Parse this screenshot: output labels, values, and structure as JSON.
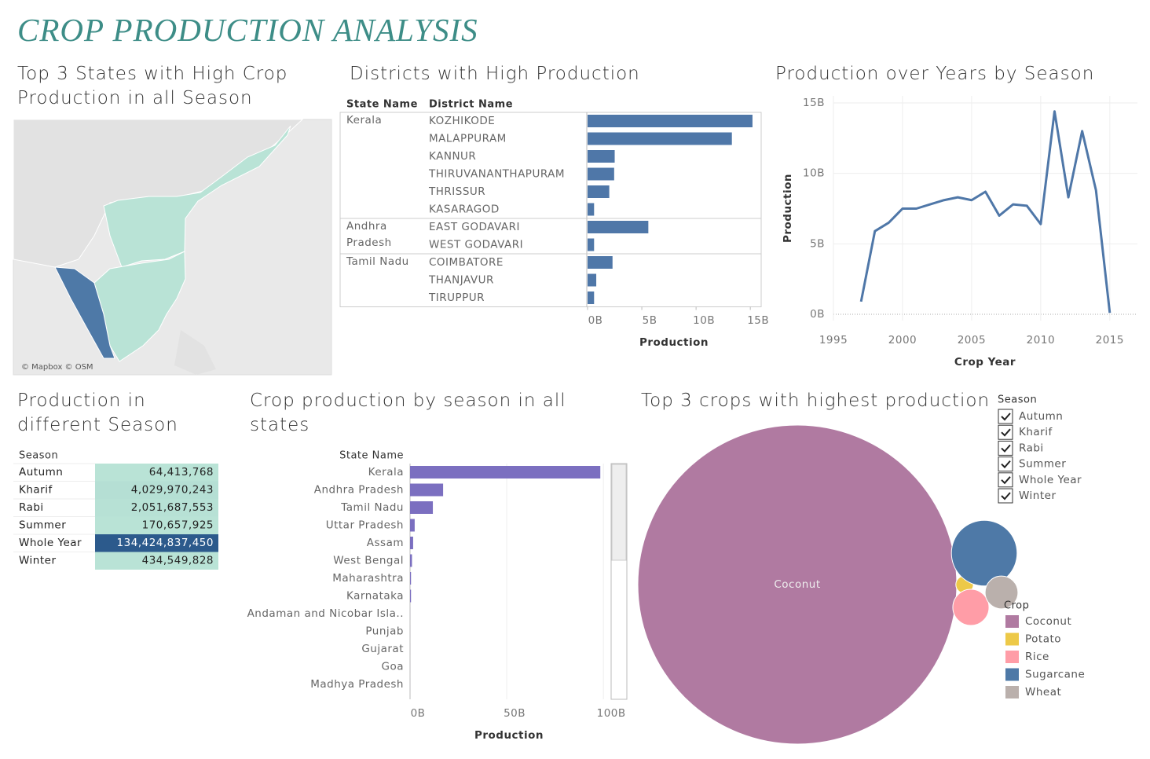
{
  "title": "CROP PRODUCTION ANALYSIS",
  "map": {
    "title": "Top 3 States with High Crop Production in all Season",
    "attribution": "© Mapbox © OSM"
  },
  "season_filter": {
    "title": "Season",
    "items": [
      "Autumn",
      "Kharif",
      "Rabi",
      "Summer",
      "Whole Year",
      "Winter"
    ]
  },
  "chart_data": [
    {
      "type": "grouped-bar",
      "title": "Districts with High Production",
      "group_header": "State Name",
      "category_header": "District Name",
      "color": "#4f77a8",
      "xlabel": "Production",
      "xlim": [
        0,
        16000000000
      ],
      "xticks": [
        {
          "value": 0,
          "label": "0B"
        },
        {
          "value": 5000000000,
          "label": "5B"
        },
        {
          "value": 10000000000,
          "label": "10B"
        },
        {
          "value": 15000000000,
          "label": "15B"
        }
      ],
      "groups": [
        {
          "name": "Kerala",
          "categories": [
            "KOZHIKODE",
            "MALAPPURAM",
            "KANNUR",
            "THIRUVANANTHAPURAM",
            "THRISSUR",
            "KASARAGOD"
          ],
          "values": [
            15200000000,
            13300000000,
            2500000000,
            2450000000,
            2000000000,
            600000000
          ]
        },
        {
          "name": "Andhra Pradesh",
          "categories": [
            "EAST GODAVARI",
            "WEST GODAVARI"
          ],
          "values": [
            5600000000,
            600000000
          ]
        },
        {
          "name": "Tamil Nadu",
          "categories": [
            "COIMBATORE",
            "THANJAVUR",
            "TIRUPPUR"
          ],
          "values": [
            2300000000,
            800000000,
            600000000
          ]
        }
      ]
    },
    {
      "type": "line",
      "title": "Production over Years by Season",
      "xlabel": "Crop Year",
      "ylabel": "Production",
      "color": "#4f77a8",
      "x": [
        1997,
        1998,
        1999,
        2000,
        2001,
        2002,
        2003,
        2004,
        2005,
        2006,
        2007,
        2008,
        2009,
        2010,
        2011,
        2012,
        2013,
        2014,
        2015
      ],
      "values": [
        900000000,
        5900000000,
        6500000000,
        7500000000,
        7500000000,
        7800000000,
        8100000000,
        8300000000,
        8100000000,
        8700000000,
        7000000000,
        7800000000,
        7700000000,
        6400000000,
        14400000000,
        8300000000,
        13000000000,
        8800000000,
        100000000
      ],
      "xlim": [
        1995,
        2017
      ],
      "xticks": [
        1995,
        2000,
        2005,
        2010,
        2015
      ],
      "ylim": [
        0,
        15000000000
      ],
      "yticks": [
        {
          "value": 0,
          "label": "0B"
        },
        {
          "value": 5000000000,
          "label": "5B"
        },
        {
          "value": 10000000000,
          "label": "10B"
        },
        {
          "value": 15000000000,
          "label": "15B"
        }
      ],
      "grid": true
    },
    {
      "type": "highlight-table",
      "title": "Production in different Season",
      "header": "Season",
      "categories": [
        "Autumn",
        "Kharif",
        "Rabi",
        "Summer",
        "Whole Year",
        "Winter"
      ],
      "values": [
        64413768,
        4029970243,
        2051687553,
        170657925,
        134424837450,
        434549828
      ],
      "value_labels": [
        "64,413,768",
        "4,029,970,243",
        "2,051,687,553",
        "170,657,925",
        "134,424,837,450",
        "434,549,828"
      ],
      "colors": [
        "#b9e3d6",
        "#2c5a8c"
      ]
    },
    {
      "type": "bar",
      "title": "Crop production by season in all states",
      "category_header": "State Name",
      "xlabel": "Production",
      "color": "#7b6fc0",
      "categories": [
        "Kerala",
        "Andhra Pradesh",
        "Tamil Nadu",
        "Uttar Pradesh",
        "Assam",
        "West Bengal",
        "Maharashtra",
        "Karnataka",
        "Andaman and Nicobar Isla..",
        "Punjab",
        "Gujarat",
        "Goa",
        "Madhya Pradesh"
      ],
      "values": [
        98400000000,
        17100000000,
        11800000000,
        2400000000,
        1600000000,
        1000000000,
        500000000,
        500000000,
        20000000,
        10000000,
        10000000,
        10000000,
        10000000
      ],
      "xlim": [
        0,
        104000000000
      ],
      "xticks": [
        {
          "value": 0,
          "label": "0B"
        },
        {
          "value": 50000000000,
          "label": "50B"
        },
        {
          "value": 100000000000,
          "label": "100B"
        }
      ],
      "grid": true
    },
    {
      "type": "bubble",
      "title": "Top 3 crops with highest production",
      "legend_title": "Crop",
      "categories": [
        "Coconut",
        "Potato",
        "Rice",
        "Sugarcane",
        "Wheat"
      ],
      "values": [
        132000000000,
        400000000,
        1700000000,
        5600000000,
        1400000000
      ],
      "colors": [
        "#b07aa1",
        "#edc948",
        "#ff9da7",
        "#4e79a7",
        "#bab0ac"
      ]
    }
  ]
}
